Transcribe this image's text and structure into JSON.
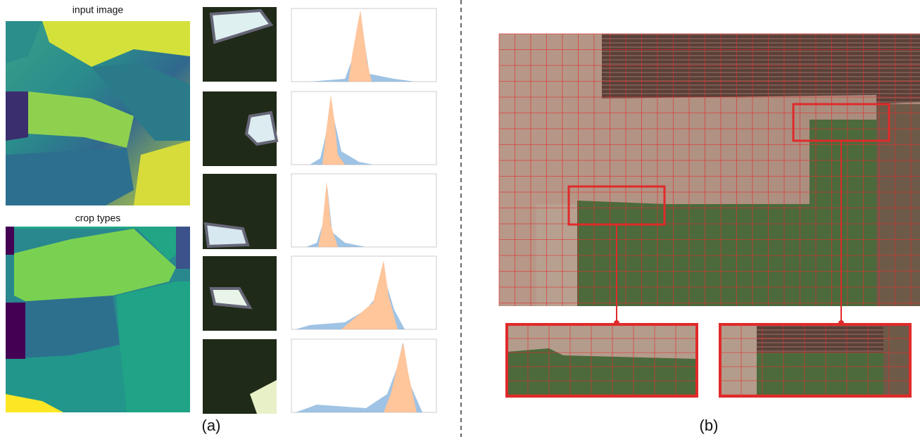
{
  "panel_a": {
    "input_label": "input image",
    "crop_label": "crop types",
    "caption": "(a)"
  },
  "panel_b": {
    "caption": "(b)"
  }
}
